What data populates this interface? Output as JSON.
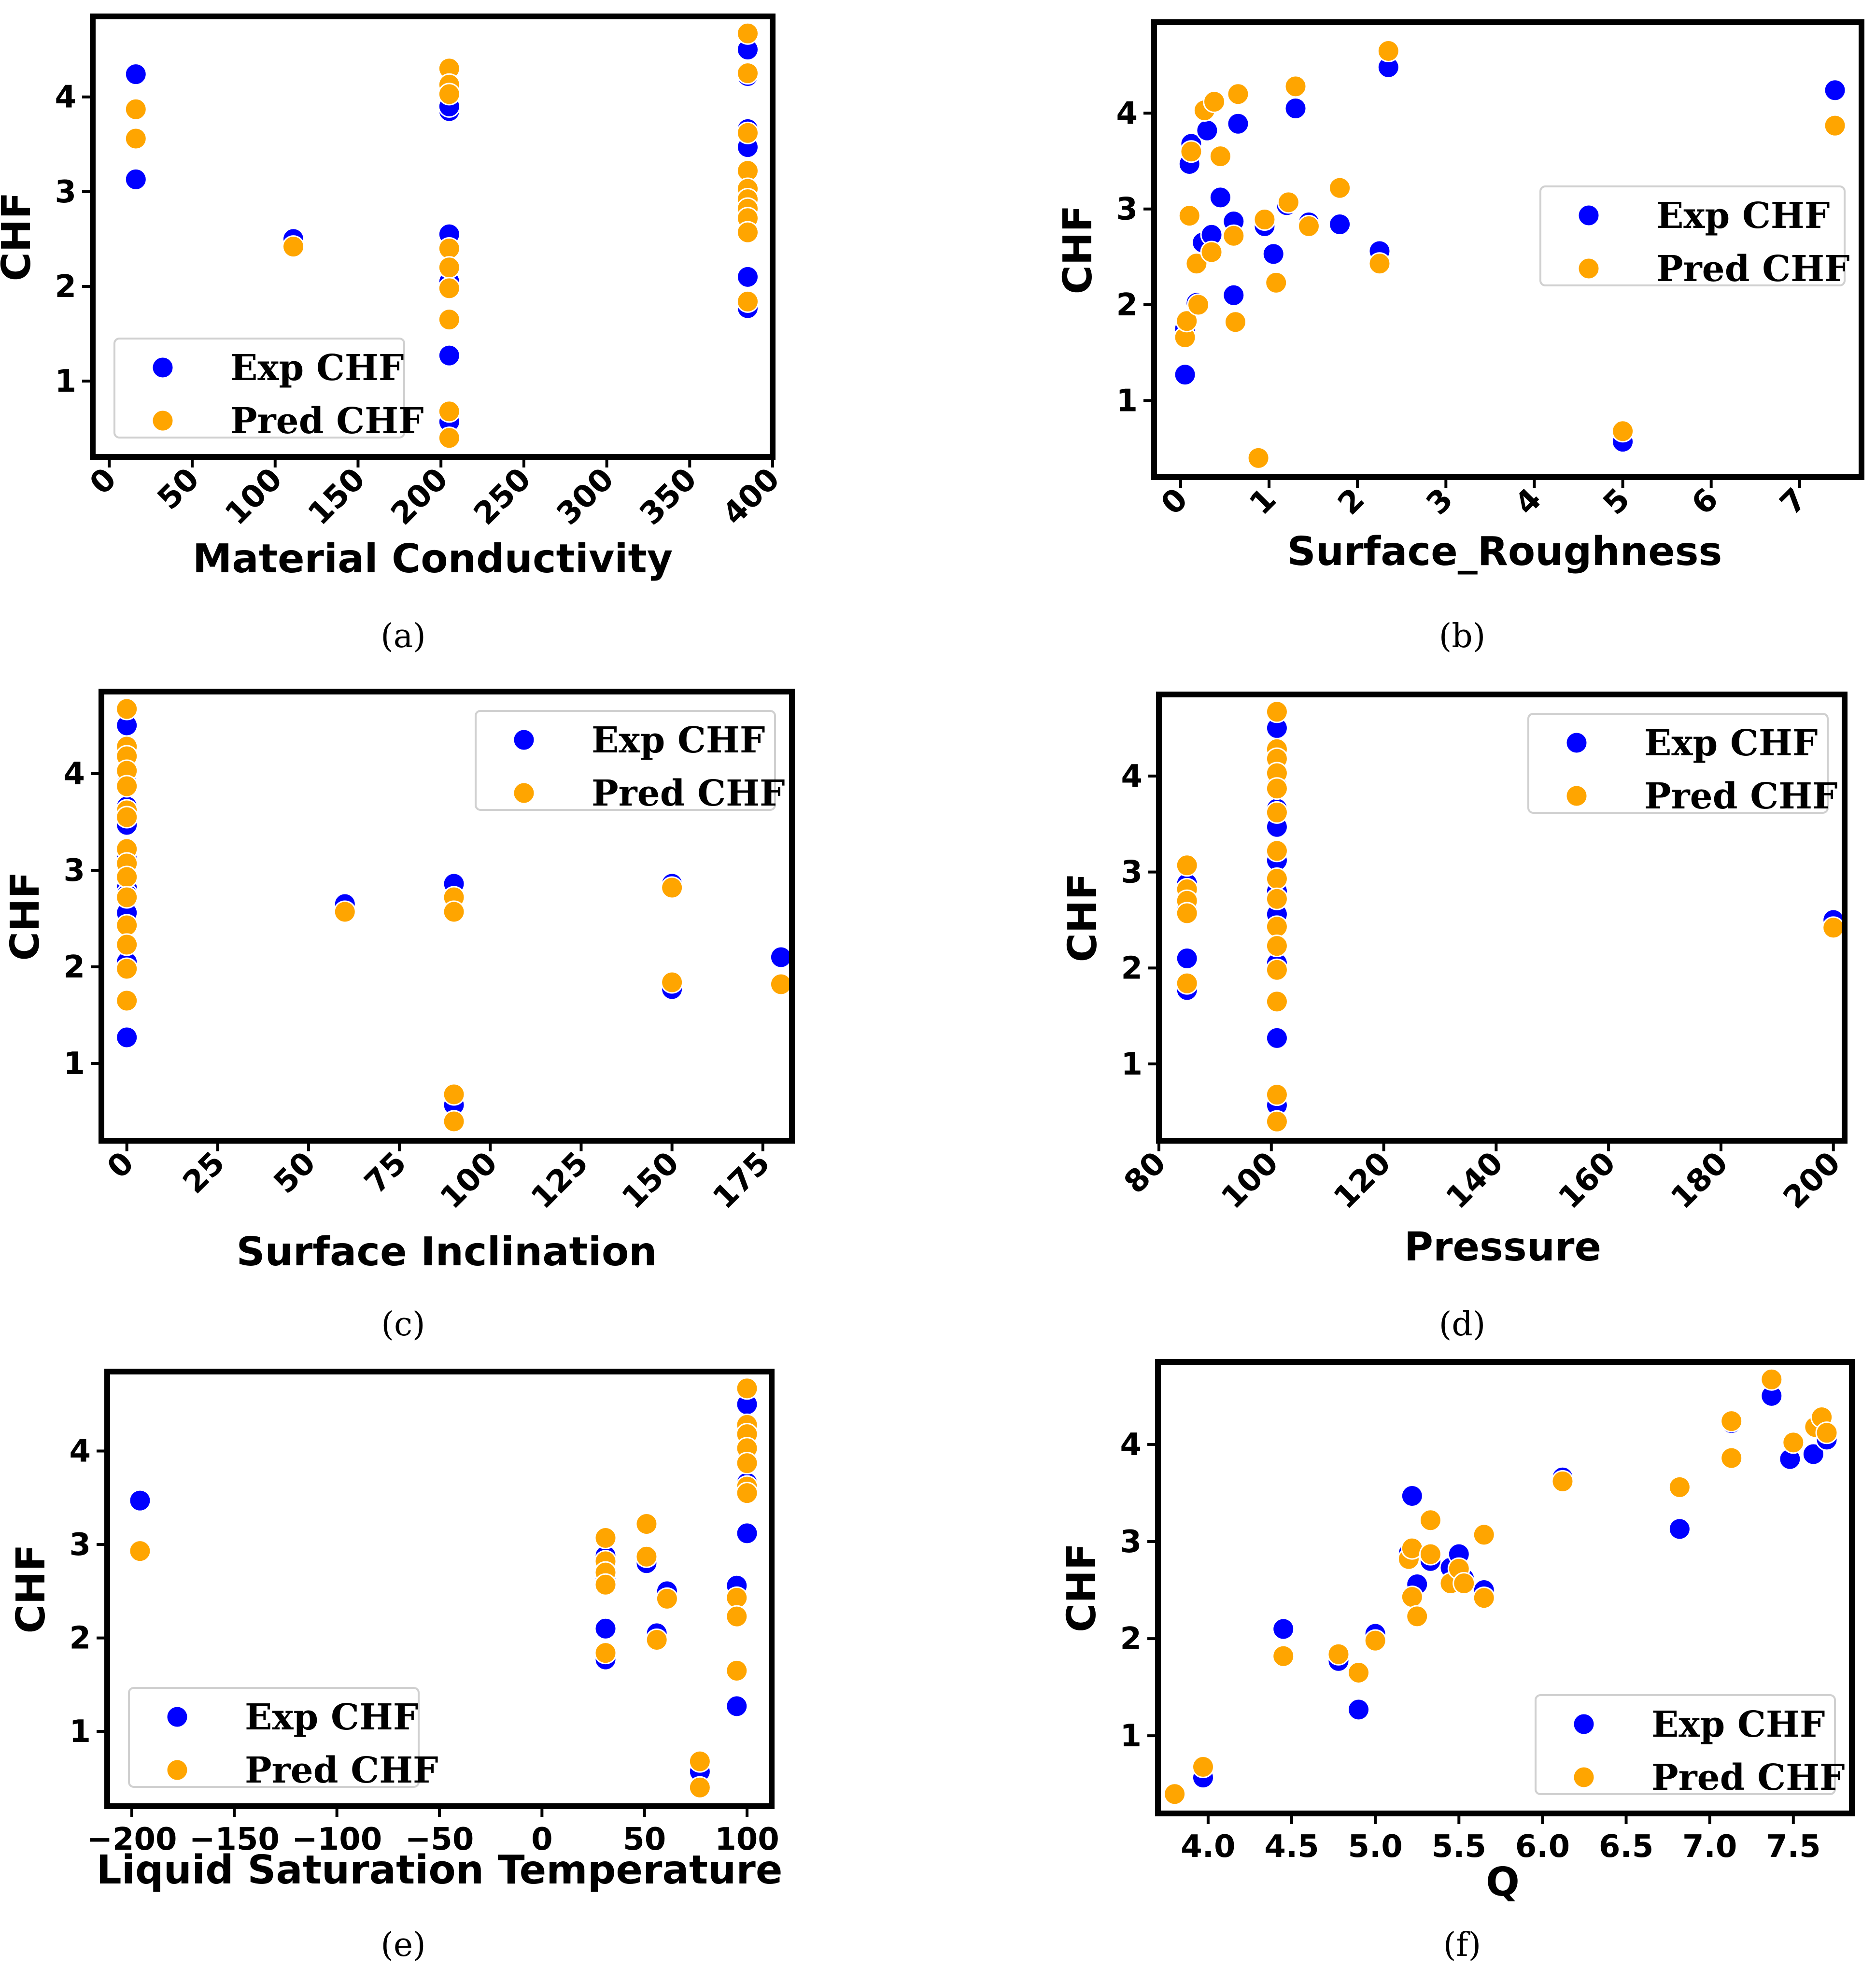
{
  "colors": {
    "exp": "#0000ff",
    "pred": "#ffa500"
  },
  "chart_data": [
    {
      "type": "scatter",
      "caption": "(a)",
      "xlabel": "Material Conductivity",
      "ylabel": "CHF",
      "xlim": [
        -10,
        400
      ],
      "ylim": [
        0.2,
        4.85
      ],
      "xticks": [
        0,
        50,
        100,
        150,
        200,
        250,
        300,
        350,
        400
      ],
      "yticks": [
        1,
        2,
        3,
        4
      ],
      "xtick_rotation": 45,
      "legend": "bottom-left",
      "series": [
        {
          "name": "Exp CHF",
          "x": [
            16,
            16,
            111,
            205,
            205,
            205,
            205,
            205,
            205,
            205,
            385,
            385,
            385,
            385,
            385,
            385,
            385,
            385,
            385
          ],
          "y": [
            4.24,
            3.13,
            2.5,
            3.85,
            2.55,
            2.05,
            1.27,
            0.57,
            0.4,
            3.9,
            4.5,
            4.22,
            3.66,
            3.47,
            2.95,
            2.8,
            2.75,
            2.1,
            1.77
          ]
        },
        {
          "name": "Pred CHF",
          "x": [
            16,
            16,
            111,
            205,
            205,
            205,
            205,
            205,
            205,
            205,
            205,
            205,
            385,
            385,
            385,
            385,
            385,
            385,
            385,
            385,
            385,
            385
          ],
          "y": [
            3.87,
            3.56,
            2.42,
            4.3,
            4.13,
            4.03,
            2.4,
            2.2,
            1.98,
            1.65,
            0.68,
            0.4,
            4.67,
            4.25,
            3.62,
            3.22,
            3.03,
            2.92,
            2.82,
            2.72,
            2.57,
            1.84
          ]
        }
      ]
    },
    {
      "type": "scatter",
      "caption": "(b)",
      "xlabel": "Surface_Roughness",
      "ylabel": "CHF",
      "xlim": [
        -0.3,
        7.7
      ],
      "ylim": [
        0.2,
        4.95
      ],
      "xticks": [
        0,
        1,
        2,
        3,
        4,
        5,
        6,
        7
      ],
      "yticks": [
        1,
        2,
        3,
        4
      ],
      "xtick_rotation": 45,
      "legend": "center-right",
      "series": [
        {
          "name": "Exp CHF",
          "x": [
            0.05,
            0.05,
            0.1,
            0.12,
            0.18,
            0.25,
            0.3,
            0.35,
            0.45,
            0.6,
            0.65,
            0.6,
            0.95,
            1.05,
            1.2,
            1.3,
            1.45,
            1.8,
            2.25,
            2.35,
            5.0,
            7.4
          ],
          "y": [
            1.27,
            1.75,
            3.47,
            3.68,
            2.02,
            2.65,
            3.82,
            2.73,
            3.12,
            2.87,
            3.89,
            2.1,
            2.82,
            2.53,
            3.04,
            4.05,
            2.86,
            2.84,
            2.56,
            4.48,
            0.57,
            4.24
          ]
        },
        {
          "name": "Pred CHF",
          "x": [
            0.05,
            0.07,
            0.1,
            0.12,
            0.18,
            0.2,
            0.27,
            0.35,
            0.38,
            0.45,
            0.6,
            0.62,
            0.65,
            0.88,
            0.95,
            1.08,
            1.22,
            1.3,
            1.45,
            1.8,
            2.25,
            2.35,
            5.0,
            7.4
          ],
          "y": [
            1.66,
            1.83,
            2.93,
            3.6,
            2.43,
            2.0,
            4.03,
            2.55,
            4.12,
            3.55,
            2.72,
            1.82,
            4.2,
            0.4,
            2.89,
            2.23,
            3.07,
            4.28,
            2.82,
            3.22,
            2.43,
            4.65,
            0.68,
            3.87
          ]
        }
      ]
    },
    {
      "type": "scatter",
      "caption": "(c)",
      "xlabel": "Surface Inclination",
      "ylabel": "CHF",
      "xlim": [
        -7,
        183
      ],
      "ylim": [
        0.2,
        4.85
      ],
      "xticks": [
        0,
        25,
        50,
        75,
        100,
        125,
        150,
        175
      ],
      "yticks": [
        1,
        2,
        3,
        4
      ],
      "xtick_rotation": 45,
      "legend": "top-right",
      "series": [
        {
          "name": "Exp CHF",
          "x": [
            0,
            0,
            0,
            0,
            0,
            0,
            0,
            0,
            0,
            0,
            0,
            60,
            90,
            90,
            90,
            150,
            150,
            180
          ],
          "y": [
            4.5,
            4.22,
            3.9,
            3.66,
            3.47,
            3.12,
            2.82,
            2.56,
            2.05,
            1.27,
            2.75,
            2.65,
            2.86,
            0.57,
            0.4,
            2.86,
            1.77,
            2.1
          ]
        },
        {
          "name": "Pred CHF",
          "x": [
            0,
            0,
            0,
            0,
            0,
            0,
            0,
            0,
            0,
            0,
            0,
            0,
            0,
            0,
            0,
            60,
            90,
            90,
            90,
            90,
            150,
            150,
            180
          ],
          "y": [
            4.67,
            4.28,
            4.18,
            4.03,
            3.87,
            3.62,
            3.22,
            3.07,
            2.93,
            2.72,
            2.43,
            2.23,
            1.98,
            1.65,
            3.55,
            2.57,
            2.72,
            2.57,
            0.68,
            0.4,
            2.82,
            1.84,
            1.82
          ]
        }
      ]
    },
    {
      "type": "scatter",
      "caption": "(d)",
      "xlabel": "Pressure",
      "ylabel": "CHF",
      "xlim": [
        80,
        202
      ],
      "ylim": [
        0.2,
        4.85
      ],
      "xticks": [
        80,
        100,
        120,
        140,
        160,
        180,
        200
      ],
      "yticks": [
        1,
        2,
        3,
        4
      ],
      "xtick_rotation": 45,
      "legend": "top-right",
      "series": [
        {
          "name": "Exp CHF",
          "x": [
            85,
            85,
            85,
            85,
            101,
            101,
            101,
            101,
            101,
            101,
            101,
            101,
            101,
            101,
            101,
            200
          ],
          "y": [
            2.88,
            2.65,
            2.1,
            1.77,
            4.5,
            4.22,
            3.9,
            3.66,
            3.47,
            3.12,
            2.8,
            2.56,
            2.05,
            1.27,
            0.57,
            2.5
          ]
        },
        {
          "name": "Pred CHF",
          "x": [
            85,
            85,
            85,
            85,
            85,
            101,
            101,
            101,
            101,
            101,
            101,
            101,
            101,
            101,
            101,
            101,
            101,
            101,
            101,
            101,
            200
          ],
          "y": [
            3.07,
            2.82,
            2.7,
            2.57,
            1.84,
            4.67,
            4.28,
            4.18,
            4.03,
            3.87,
            3.62,
            3.22,
            2.93,
            2.72,
            2.43,
            2.23,
            1.98,
            1.65,
            0.68,
            0.4,
            2.42
          ]
        }
      ]
    },
    {
      "type": "scatter",
      "caption": "(e)",
      "xlabel": "Liquid Saturation Temperature",
      "ylabel": "CHF",
      "xlim": [
        -212,
        112
      ],
      "ylim": [
        0.2,
        4.85
      ],
      "xticks": [
        -200,
        -150,
        -100,
        -50,
        0,
        50,
        100
      ],
      "yticks": [
        1,
        2,
        3,
        4
      ],
      "xtick_rotation": 0,
      "legend": "bottom-left",
      "series": [
        {
          "name": "Exp CHF",
          "x": [
            -196,
            31,
            31,
            31,
            31,
            51,
            56,
            61,
            77,
            77,
            95,
            95,
            100,
            100,
            100,
            100,
            100
          ],
          "y": [
            3.47,
            2.88,
            2.1,
            1.77,
            2.65,
            2.8,
            2.05,
            2.5,
            0.57,
            0.4,
            2.56,
            1.27,
            4.5,
            4.22,
            3.9,
            3.66,
            3.12
          ]
        },
        {
          "name": "Pred CHF",
          "x": [
            -196,
            31,
            31,
            31,
            31,
            31,
            51,
            51,
            56,
            61,
            77,
            77,
            95,
            95,
            95,
            100,
            100,
            100,
            100,
            100,
            100,
            100
          ],
          "y": [
            2.93,
            3.07,
            2.82,
            2.7,
            2.57,
            1.84,
            3.22,
            2.87,
            1.98,
            2.42,
            0.68,
            0.4,
            2.43,
            2.23,
            1.65,
            4.67,
            4.28,
            4.18,
            4.03,
            3.87,
            3.62,
            3.55
          ]
        }
      ]
    },
    {
      "type": "scatter",
      "caption": "(f)",
      "xlabel": "Q",
      "ylabel": "CHF",
      "xlim": [
        3.7,
        7.85
      ],
      "ylim": [
        0.2,
        4.85
      ],
      "xticks": [
        4.0,
        4.5,
        5.0,
        5.5,
        6.0,
        6.5,
        7.0,
        7.5
      ],
      "xtick_labels": [
        "4.0",
        "4.5",
        "5.0",
        "5.5",
        "6.0",
        "6.5",
        "7.0",
        "7.5"
      ],
      "yticks": [
        1,
        2,
        3,
        4
      ],
      "xtick_rotation": 0,
      "legend": "bottom-right",
      "series": [
        {
          "name": "Exp CHF",
          "x": [
            3.8,
            3.97,
            4.45,
            4.78,
            4.9,
            5.0,
            5.2,
            5.22,
            5.25,
            5.33,
            5.45,
            5.5,
            5.53,
            5.65,
            6.12,
            6.82,
            7.13,
            7.37,
            7.48,
            7.62,
            7.67,
            7.7
          ],
          "y": [
            0.4,
            0.57,
            2.1,
            1.77,
            1.27,
            2.05,
            2.88,
            3.47,
            2.56,
            2.8,
            2.73,
            2.87,
            2.62,
            2.5,
            3.66,
            3.13,
            4.22,
            4.5,
            3.85,
            3.9,
            4.22,
            4.05
          ]
        },
        {
          "name": "Pred CHF",
          "x": [
            3.8,
            3.97,
            4.45,
            4.78,
            4.9,
            5.0,
            5.2,
            5.22,
            5.22,
            5.25,
            5.33,
            5.33,
            5.45,
            5.5,
            5.53,
            5.65,
            5.65,
            6.12,
            6.82,
            7.13,
            7.13,
            7.37,
            7.5,
            7.63,
            7.67,
            7.7
          ],
          "y": [
            0.4,
            0.68,
            1.82,
            1.84,
            1.65,
            1.98,
            2.82,
            2.93,
            2.43,
            2.23,
            3.22,
            2.87,
            2.57,
            2.72,
            2.57,
            3.07,
            2.42,
            3.62,
            3.56,
            4.24,
            3.86,
            4.67,
            4.02,
            4.18,
            4.28,
            4.12
          ]
        }
      ]
    }
  ]
}
